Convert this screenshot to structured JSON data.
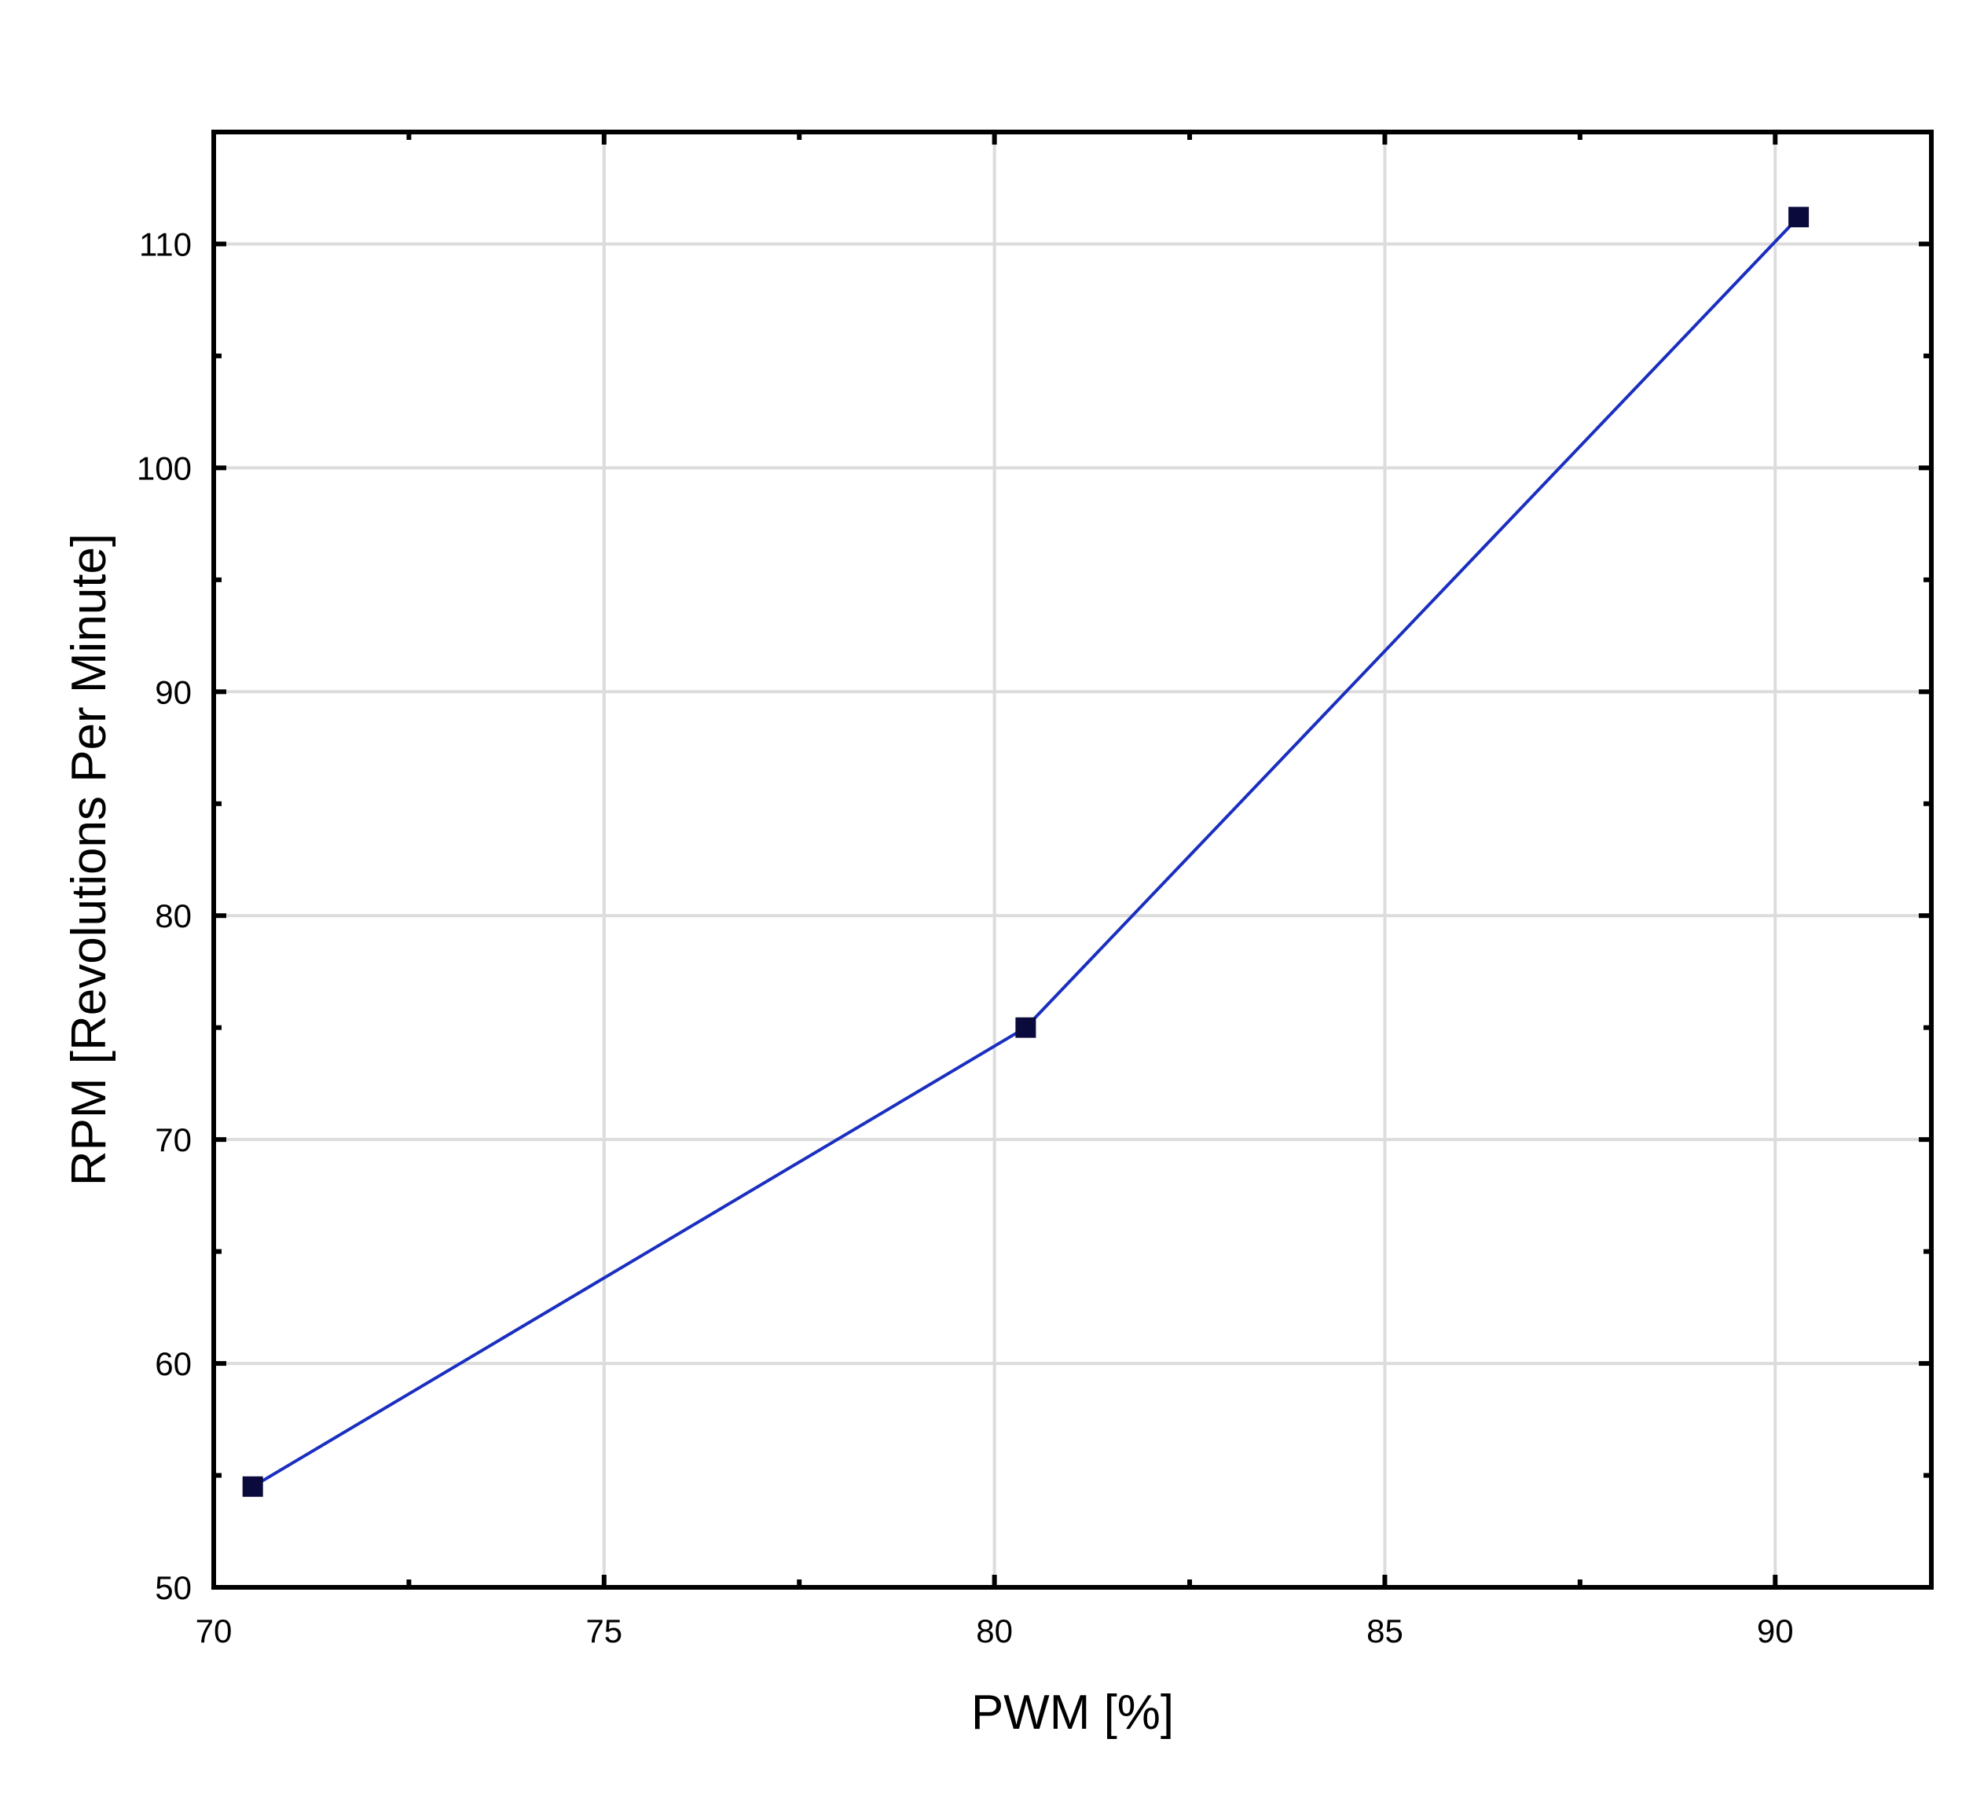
{
  "chart_data": {
    "type": "line",
    "title": "",
    "xlabel": "PWM [%]",
    "ylabel": "RPM [Revolutions Per Minute]",
    "xlim": [
      70,
      92
    ],
    "ylim": [
      50,
      115
    ],
    "xticks": [
      70,
      75,
      80,
      85,
      90
    ],
    "yticks": [
      50,
      60,
      70,
      80,
      90,
      100,
      110
    ],
    "x_minor_step": 2.5,
    "y_minor_step": 5,
    "grid": true,
    "legend": "none",
    "series": [
      {
        "x": [
          70.5,
          80.4,
          90.3
        ],
        "y": [
          54.5,
          75,
          111.2
        ],
        "marker": "square",
        "line_color": "#1a2fbf",
        "marker_color": "#0a0a3c"
      }
    ]
  }
}
